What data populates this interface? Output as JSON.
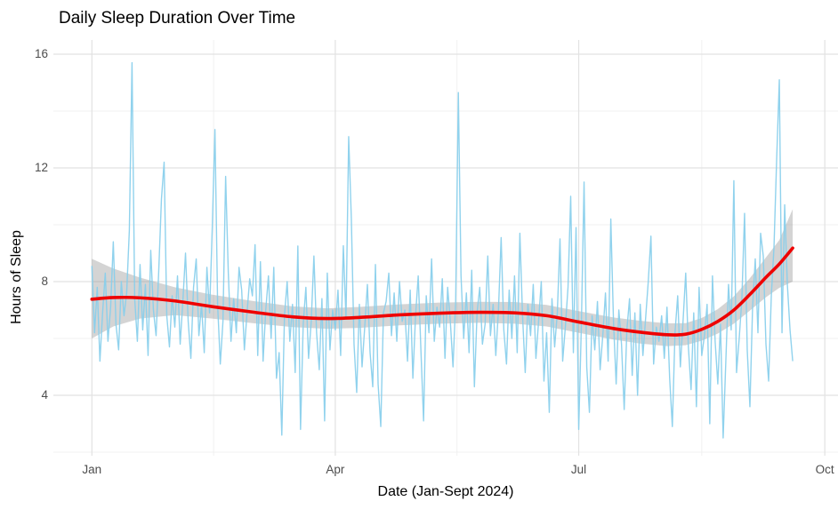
{
  "colors": {
    "daily_line": "#87CEEB",
    "smooth_line": "#EE0000",
    "confidence_band": "rgba(125,125,125,0.33)",
    "grid_major": "#e2e2e2",
    "grid_minor": "#f0f0f0",
    "tick_text": "#4d4d4d",
    "title_text": "#000000",
    "background": "#ffffff"
  },
  "chart_data": {
    "type": "line",
    "title": "Daily Sleep Duration Over Time",
    "xlabel": "Date (Jan-Sept 2024)",
    "ylabel": "Hours of Sleep",
    "legend": "none",
    "grid": "on",
    "x_axis": {
      "tick_labels": [
        "Jan",
        "Apr",
        "Jul",
        "Oct"
      ],
      "tick_days": [
        0,
        91,
        182,
        274
      ],
      "minor_days": [
        45.5,
        136.5,
        228
      ],
      "start_label": "Jan 2024",
      "days_shown": 263
    },
    "y_axis": {
      "ticks": [
        4,
        8,
        12,
        16
      ],
      "minor_ticks": [
        2,
        6,
        10,
        14
      ],
      "range_shown": [
        1.6,
        16.5
      ]
    },
    "series": [
      {
        "name": "daily_sleep_hours",
        "style": "jagged-line",
        "values": [
          8.55,
          6.2,
          7.8,
          5.2,
          6.9,
          8.3,
          5.9,
          7.1,
          9.4,
          6.5,
          5.6,
          8.0,
          6.8,
          7.6,
          9.8,
          15.7,
          7.4,
          5.9,
          8.6,
          6.3,
          7.9,
          5.4,
          9.1,
          7.0,
          6.1,
          8.4,
          10.9,
          12.2,
          6.8,
          5.7,
          7.5,
          6.4,
          8.2,
          5.8,
          7.3,
          9.0,
          6.6,
          5.3,
          7.8,
          8.8,
          6.1,
          7.2,
          5.5,
          8.5,
          6.9,
          9.9,
          13.35,
          7.2,
          5.1,
          6.6,
          11.7,
          8.3,
          5.9,
          7.4,
          6.2,
          8.5,
          7.7,
          5.6,
          6.9,
          8.1,
          7.5,
          9.3,
          5.4,
          8.7,
          5.2,
          7.0,
          8.2,
          6.0,
          8.5,
          4.6,
          5.5,
          2.6,
          6.8,
          8.0,
          5.9,
          7.2,
          4.8,
          9.25,
          2.8,
          6.5,
          7.8,
          5.3,
          6.6,
          8.9,
          6.2,
          4.9,
          7.4,
          3.1,
          8.3,
          5.6,
          7.0,
          6.3,
          7.7,
          5.4,
          9.26,
          6.7,
          13.1,
          10.2,
          5.8,
          4.1,
          7.2,
          5.0,
          6.4,
          7.9,
          5.5,
          4.3,
          8.6,
          4.4,
          2.9,
          6.9,
          7.3,
          8.3,
          6.1,
          7.6,
          5.9,
          8.0,
          6.6,
          7.0,
          5.2,
          7.7,
          4.6,
          6.8,
          8.2,
          5.6,
          3.1,
          7.5,
          6.2,
          8.8,
          5.9,
          7.1,
          6.4,
          8.1,
          5.3,
          7.8,
          6.6,
          5.0,
          7.3,
          14.65,
          8.2,
          6.0,
          7.6,
          5.5,
          8.4,
          4.3,
          6.9,
          7.8,
          5.8,
          6.5,
          8.9,
          6.1,
          7.2,
          5.4,
          7.0,
          9.55,
          6.3,
          5.1,
          7.7,
          6.0,
          8.2,
          5.5,
          9.7,
          6.8,
          4.8,
          7.2,
          6.1,
          7.9,
          5.3,
          6.6,
          8.0,
          4.5,
          6.2,
          3.4,
          7.4,
          5.7,
          6.9,
          9.5,
          5.2,
          6.4,
          7.8,
          11.0,
          5.5,
          9.9,
          2.8,
          6.5,
          11.5,
          5.0,
          3.4,
          6.8,
          5.6,
          7.3,
          4.9,
          6.1,
          7.6,
          5.2,
          10.2,
          6.6,
          4.4,
          7.0,
          5.8,
          3.5,
          6.3,
          7.4,
          4.7,
          6.9,
          4.0,
          7.2,
          5.4,
          6.7,
          8.0,
          9.6,
          5.1,
          6.4,
          5.9,
          6.8,
          5.3,
          7.1,
          4.6,
          2.9,
          6.2,
          7.5,
          5.0,
          6.6,
          8.3,
          5.7,
          4.2,
          6.9,
          3.6,
          7.8,
          5.4,
          6.1,
          7.2,
          3.0,
          8.2,
          5.9,
          4.4,
          6.5,
          2.5,
          5.2,
          7.9,
          6.3,
          11.55,
          4.8,
          6.0,
          7.4,
          10.4,
          5.6,
          3.6,
          7.1,
          8.8,
          6.2,
          9.7,
          8.9,
          5.8,
          4.5,
          7.5,
          9.2,
          12.3,
          15.1,
          6.2,
          10.7,
          7.9,
          6.3,
          5.2
        ]
      },
      {
        "name": "loess_smooth",
        "style": "smooth-line",
        "points": [
          [
            0,
            7.38
          ],
          [
            8,
            7.44
          ],
          [
            18,
            7.43
          ],
          [
            31,
            7.32
          ],
          [
            45,
            7.12
          ],
          [
            60,
            6.93
          ],
          [
            75,
            6.76
          ],
          [
            88,
            6.7
          ],
          [
            100,
            6.74
          ],
          [
            115,
            6.83
          ],
          [
            130,
            6.89
          ],
          [
            145,
            6.92
          ],
          [
            158,
            6.9
          ],
          [
            170,
            6.8
          ],
          [
            182,
            6.58
          ],
          [
            195,
            6.35
          ],
          [
            205,
            6.22
          ],
          [
            215,
            6.13
          ],
          [
            222,
            6.15
          ],
          [
            228,
            6.32
          ],
          [
            234,
            6.6
          ],
          [
            240,
            7.0
          ],
          [
            246,
            7.55
          ],
          [
            252,
            8.15
          ],
          [
            257,
            8.62
          ],
          [
            262,
            9.18
          ]
        ]
      },
      {
        "name": "confidence_band",
        "style": "area",
        "points": [
          [
            0,
            6.0,
            8.8
          ],
          [
            8,
            6.42,
            8.46
          ],
          [
            18,
            6.7,
            8.14
          ],
          [
            31,
            6.82,
            7.8
          ],
          [
            45,
            6.7,
            7.54
          ],
          [
            60,
            6.54,
            7.32
          ],
          [
            75,
            6.4,
            7.13
          ],
          [
            88,
            6.34,
            7.06
          ],
          [
            100,
            6.37,
            7.11
          ],
          [
            115,
            6.46,
            7.2
          ],
          [
            130,
            6.52,
            7.26
          ],
          [
            145,
            6.55,
            7.29
          ],
          [
            158,
            6.52,
            7.28
          ],
          [
            170,
            6.42,
            7.18
          ],
          [
            182,
            6.2,
            6.96
          ],
          [
            195,
            5.96,
            6.74
          ],
          [
            205,
            5.82,
            6.62
          ],
          [
            215,
            5.73,
            6.53
          ],
          [
            222,
            5.76,
            6.54
          ],
          [
            228,
            5.92,
            6.72
          ],
          [
            234,
            6.17,
            7.03
          ],
          [
            240,
            6.52,
            7.48
          ],
          [
            246,
            6.98,
            8.12
          ],
          [
            252,
            7.45,
            8.85
          ],
          [
            257,
            7.78,
            9.46
          ],
          [
            262,
            8.0,
            10.55
          ]
        ]
      }
    ]
  }
}
